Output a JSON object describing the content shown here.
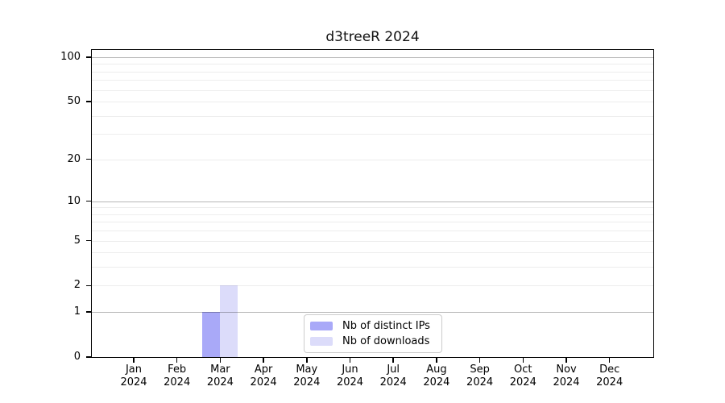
{
  "chart_data": {
    "type": "bar",
    "title": "d3treeR 2024",
    "months": [
      "Jan",
      "Feb",
      "Mar",
      "Apr",
      "May",
      "Jun",
      "Jul",
      "Aug",
      "Sep",
      "Oct",
      "Nov",
      "Dec"
    ],
    "year": "2024",
    "series": [
      {
        "name": "Nb of distinct IPs",
        "color": "#a9a9f8",
        "values": [
          0,
          0,
          1,
          0,
          0,
          0,
          0,
          0,
          0,
          0,
          0,
          0
        ]
      },
      {
        "name": "Nb of downloads",
        "color": "#dcdcfa",
        "values": [
          0,
          0,
          2,
          0,
          0,
          0,
          0,
          0,
          0,
          0,
          0,
          0
        ]
      }
    ],
    "yscale": "log1p",
    "ylim": [
      0,
      112
    ],
    "ytick_values": [
      0,
      1,
      2,
      5,
      10,
      20,
      50,
      100
    ],
    "major_grid_values": [
      1,
      10,
      100
    ],
    "minor_grid_values": [
      2,
      3,
      4,
      5,
      6,
      7,
      8,
      9,
      20,
      30,
      40,
      50,
      60,
      70,
      80,
      90
    ],
    "grid_major_color": "#b6b6b6",
    "grid_minor_color": "#ededed",
    "axis_color": "#000000",
    "legend_position": "lower center"
  }
}
